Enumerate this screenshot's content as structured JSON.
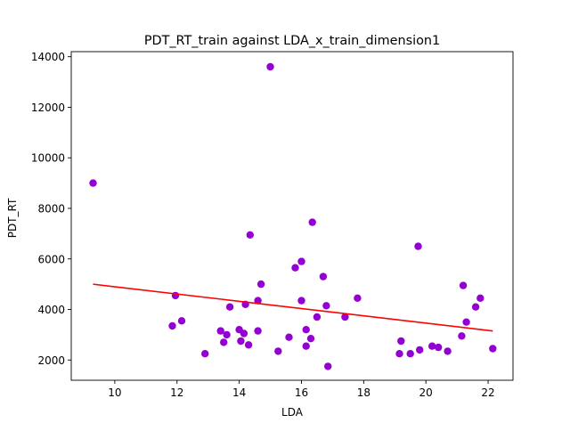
{
  "chart_data": {
    "type": "scatter",
    "title": "PDT_RT_train against LDA_x_train_dimension1",
    "xlabel": "LDA",
    "ylabel": "PDT_RT",
    "xlim": [
      8.6,
      22.8
    ],
    "ylim": [
      1200,
      14200
    ],
    "x_ticks": [
      10,
      12,
      14,
      16,
      18,
      20,
      22
    ],
    "y_ticks": [
      2000,
      4000,
      6000,
      8000,
      10000,
      12000,
      14000
    ],
    "grid": false,
    "legend": "none",
    "colors": {
      "points": "#9400d3",
      "fit_line": "#ff0000"
    },
    "series": [
      {
        "kind": "points",
        "x": [
          9.3,
          11.85,
          11.95,
          12.15,
          12.9,
          13.4,
          13.5,
          13.6,
          13.7,
          14.0,
          14.05,
          14.15,
          14.2,
          14.3,
          14.35,
          14.6,
          14.6,
          14.7,
          15.0,
          15.25,
          15.6,
          15.8,
          16.0,
          16.0,
          16.15,
          16.15,
          16.3,
          16.35,
          16.5,
          16.7,
          16.8,
          16.85,
          17.4,
          17.8,
          19.15,
          19.2,
          19.5,
          19.75,
          19.8,
          20.2,
          20.4,
          20.7,
          21.15,
          21.2,
          21.3,
          21.6,
          21.75,
          22.15
        ],
        "y": [
          9000,
          3350,
          4550,
          3550,
          2250,
          3150,
          2700,
          3000,
          4100,
          3200,
          2750,
          3050,
          4200,
          2600,
          6950,
          4350,
          3150,
          5000,
          13600,
          2350,
          2900,
          5650,
          5900,
          4350,
          3200,
          2550,
          2850,
          7450,
          3700,
          5300,
          4150,
          1750,
          3700,
          4450,
          2250,
          2750,
          2250,
          6500,
          2400,
          2550,
          2500,
          2350,
          2950,
          4950,
          3500,
          4100,
          4450,
          2450
        ]
      },
      {
        "kind": "fit_line",
        "x": [
          9.3,
          22.15
        ],
        "y": [
          5000,
          3150
        ]
      }
    ]
  }
}
